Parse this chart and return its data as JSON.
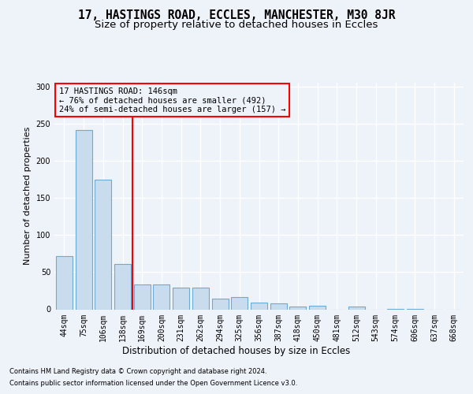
{
  "title1": "17, HASTINGS ROAD, ECCLES, MANCHESTER, M30 8JR",
  "title2": "Size of property relative to detached houses in Eccles",
  "xlabel": "Distribution of detached houses by size in Eccles",
  "ylabel": "Number of detached properties",
  "categories": [
    "44sqm",
    "75sqm",
    "106sqm",
    "138sqm",
    "169sqm",
    "200sqm",
    "231sqm",
    "262sqm",
    "294sqm",
    "325sqm",
    "356sqm",
    "387sqm",
    "418sqm",
    "450sqm",
    "481sqm",
    "512sqm",
    "543sqm",
    "574sqm",
    "606sqm",
    "637sqm",
    "668sqm"
  ],
  "values": [
    72,
    241,
    174,
    61,
    33,
    33,
    29,
    29,
    14,
    16,
    9,
    8,
    4,
    5,
    0,
    4,
    0,
    1,
    1,
    0,
    0
  ],
  "bar_color": "#c9dcee",
  "bar_edge_color": "#6aaad4",
  "annotation_lines": [
    "17 HASTINGS ROAD: 146sqm",
    "← 76% of detached houses are smaller (492)",
    "24% of semi-detached houses are larger (157) →"
  ],
  "footer1": "Contains HM Land Registry data © Crown copyright and database right 2024.",
  "footer2": "Contains public sector information licensed under the Open Government Licence v3.0.",
  "ylim": [
    0,
    305
  ],
  "yticks": [
    0,
    50,
    100,
    150,
    200,
    250,
    300
  ],
  "bg_color": "#eef2f9",
  "grid_color": "#ffffff",
  "title1_fontsize": 10.5,
  "title2_fontsize": 9.5,
  "ref_line_x": 3.5
}
